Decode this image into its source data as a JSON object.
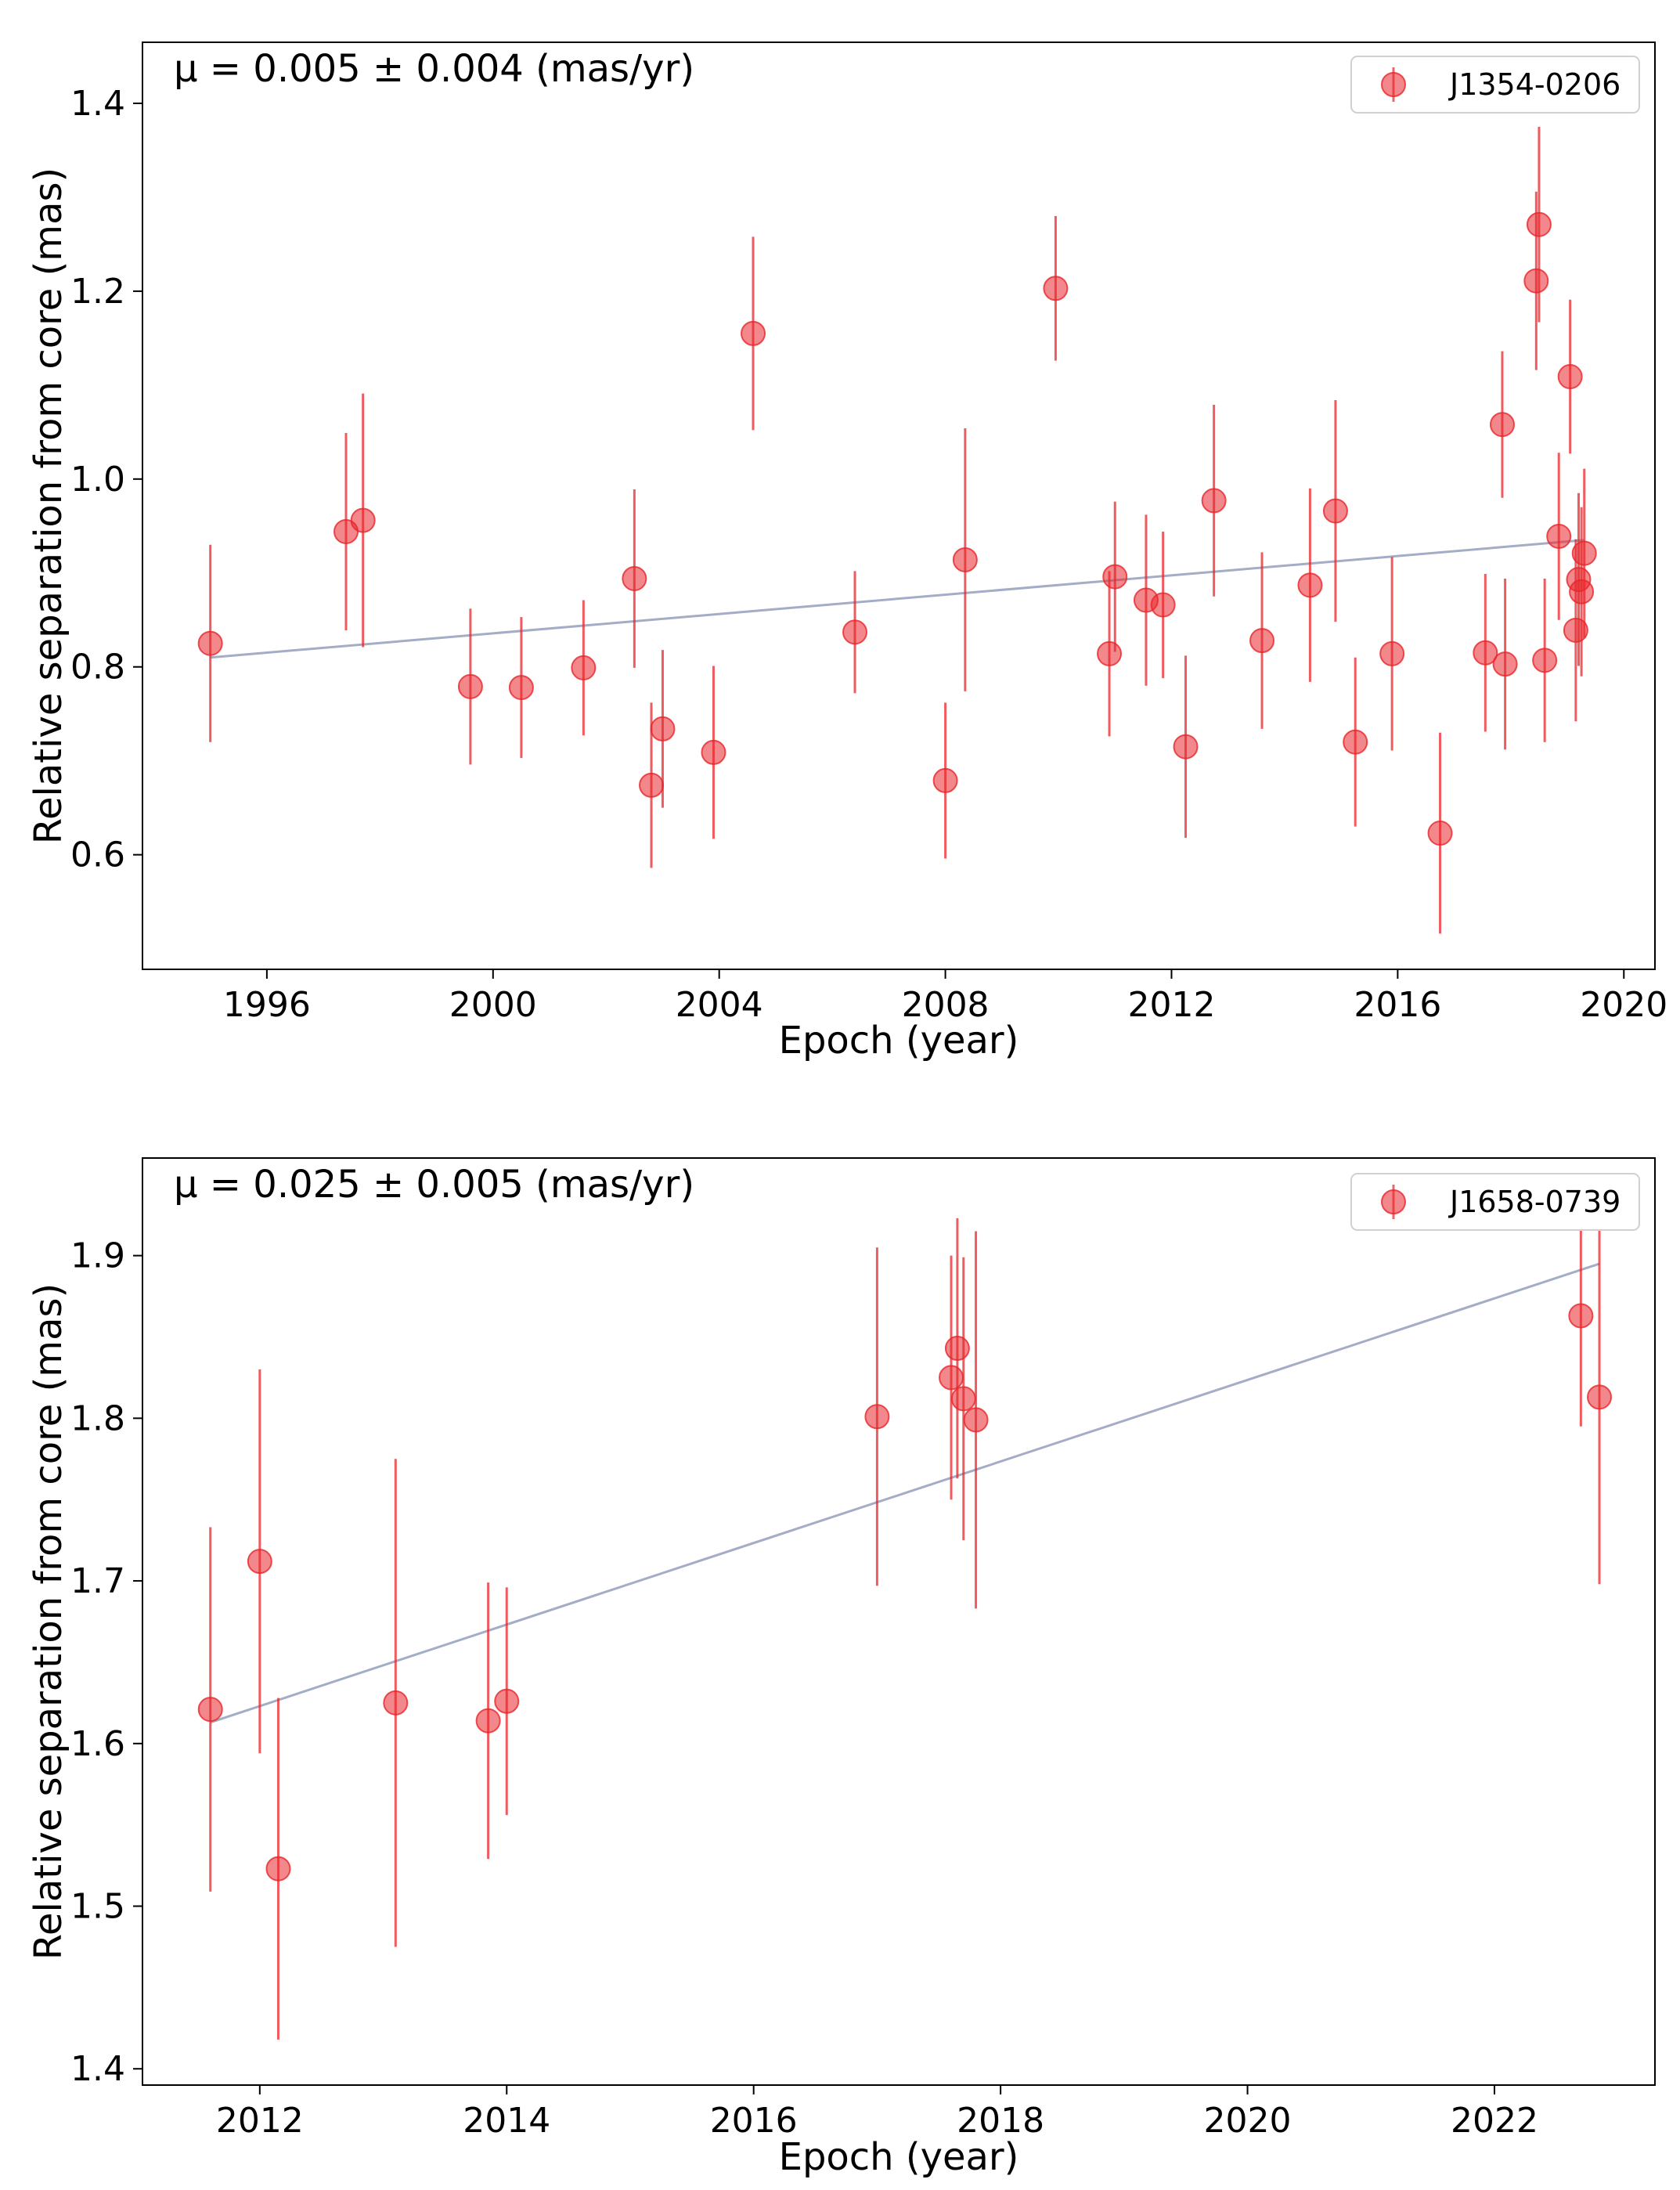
{
  "chart_data": [
    {
      "type": "scatter",
      "annotation": "μ = 0.005 ± 0.004 (mas/yr)",
      "xlabel": "Epoch (year)",
      "ylabel": "Relative separation from core (mas)",
      "xlim": [
        1993.8,
        2020.55
      ],
      "ylim": [
        0.478,
        1.465
      ],
      "xticks": [
        1996,
        2000,
        2004,
        2008,
        2012,
        2016,
        2020
      ],
      "xtick_labels": [
        "1996",
        "2000",
        "2004",
        "2008",
        "2012",
        "2016",
        "2020"
      ],
      "yticks": [
        0.6,
        0.8,
        1.0,
        1.2,
        1.4
      ],
      "ytick_labels": [
        "0.6",
        "0.8",
        "1.0",
        "1.2",
        "1.4"
      ],
      "legend": "top-right",
      "grid": false,
      "colors": {
        "points": "#e8262b",
        "fit": "#a4adc6"
      },
      "fit": {
        "x": [
          1995.0,
          2019.3
        ],
        "y": [
          0.81,
          0.935
        ]
      },
      "series": [
        {
          "name": "J1354-0206",
          "x": [
            1995.0,
            1997.4,
            1997.7,
            1999.6,
            2000.5,
            2001.6,
            2002.5,
            2002.8,
            2003.0,
            2003.9,
            2004.6,
            2006.4,
            2008.0,
            2008.35,
            2009.95,
            2010.9,
            2011.0,
            2011.55,
            2011.85,
            2012.25,
            2012.75,
            2013.6,
            2014.45,
            2014.9,
            2015.25,
            2015.9,
            2016.75,
            2017.55,
            2017.9,
            2017.85,
            2018.45,
            2018.5,
            2018.6,
            2018.85,
            2019.05,
            2019.15,
            2019.2,
            2019.25,
            2019.3
          ],
          "y": [
            0.825,
            0.944,
            0.956,
            0.779,
            0.778,
            0.799,
            0.894,
            0.674,
            0.734,
            0.709,
            1.155,
            0.837,
            0.679,
            0.914,
            1.203,
            0.814,
            0.896,
            0.871,
            0.866,
            0.715,
            0.977,
            0.828,
            0.887,
            0.966,
            0.72,
            0.814,
            0.623,
            0.815,
            0.803,
            1.058,
            1.211,
            1.271,
            0.807,
            0.939,
            1.109,
            0.839,
            0.893,
            0.88,
            0.921
          ],
          "yerr": [
            0.105,
            0.105,
            0.135,
            0.083,
            0.075,
            0.072,
            0.095,
            0.088,
            0.084,
            0.092,
            0.103,
            0.065,
            0.083,
            0.14,
            0.077,
            0.088,
            0.08,
            0.091,
            0.078,
            0.097,
            0.102,
            0.094,
            0.103,
            0.118,
            0.09,
            0.103,
            0.107,
            0.084,
            0.091,
            0.078,
            0.095,
            0.104,
            0.087,
            0.089,
            0.082,
            0.097,
            0.092,
            0.09,
            0.09
          ]
        }
      ]
    },
    {
      "type": "scatter",
      "annotation": "μ = 0.025 ± 0.005 (mas/yr)",
      "xlabel": "Epoch (year)",
      "ylabel": "Relative separation from core (mas)",
      "xlim": [
        2011.05,
        2023.3
      ],
      "ylim": [
        1.39,
        1.96
      ],
      "xticks": [
        2012,
        2014,
        2016,
        2018,
        2020,
        2022
      ],
      "xtick_labels": [
        "2012",
        "2014",
        "2016",
        "2018",
        "2020",
        "2022"
      ],
      "yticks": [
        1.4,
        1.5,
        1.6,
        1.7,
        1.8,
        1.9
      ],
      "ytick_labels": [
        "1.4",
        "1.5",
        "1.6",
        "1.7",
        "1.8",
        "1.9"
      ],
      "legend": "top-right",
      "grid": false,
      "colors": {
        "points": "#e8262b",
        "fit": "#a4adc6"
      },
      "fit": {
        "x": [
          2011.6,
          2022.85
        ],
        "y": [
          1.613,
          1.895
        ]
      },
      "series": [
        {
          "name": "J1658-0739",
          "x": [
            2011.6,
            2012.0,
            2012.15,
            2013.1,
            2013.85,
            2014.0,
            2017.0,
            2017.6,
            2017.65,
            2017.7,
            2017.8,
            2022.7,
            2022.85
          ],
          "y": [
            1.621,
            1.712,
            1.523,
            1.625,
            1.614,
            1.626,
            1.801,
            1.825,
            1.843,
            1.812,
            1.799,
            1.863,
            1.813
          ],
          "yerr": [
            0.112,
            0.118,
            0.105,
            0.15,
            0.085,
            0.07,
            0.104,
            0.075,
            0.08,
            0.087,
            0.116,
            0.068,
            0.115
          ]
        }
      ]
    }
  ]
}
